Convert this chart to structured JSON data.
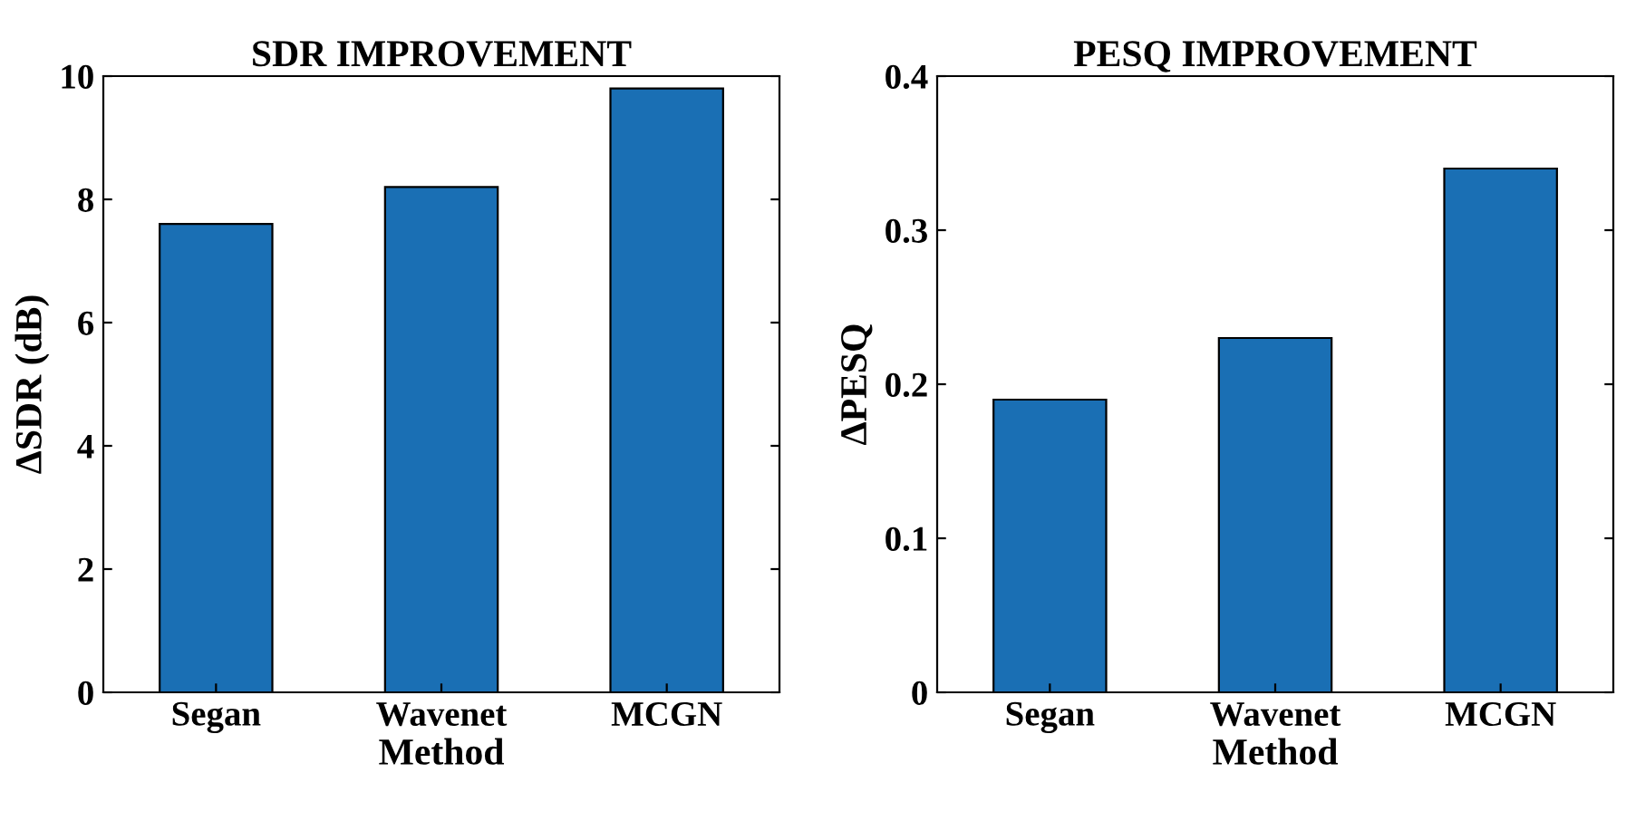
{
  "chart_data": [
    {
      "type": "bar",
      "title": "SDR IMPROVEMENT",
      "xlabel": "Method",
      "ylabel": "ΔSDR (dB)",
      "categories": [
        "Segan",
        "Wavenet",
        "MCGN"
      ],
      "series": [
        {
          "color": "#1a6fb4",
          "values": [
            7.6,
            8.2,
            9.8
          ]
        }
      ],
      "ylim": [
        0,
        10
      ],
      "yticks": [
        0,
        2,
        4,
        6,
        8,
        10
      ],
      "grid": false,
      "legend": false
    },
    {
      "type": "bar",
      "title": "PESQ IMPROVEMENT",
      "xlabel": "Method",
      "ylabel": "ΔPESQ",
      "categories": [
        "Segan",
        "Wavenet",
        "MCGN"
      ],
      "series": [
        {
          "color": "#1a6fb4",
          "values": [
            0.19,
            0.23,
            0.34
          ]
        }
      ],
      "ylim": [
        0,
        0.4
      ],
      "yticks": [
        0,
        0.1,
        0.2,
        0.3,
        0.4
      ],
      "grid": false,
      "legend": false
    }
  ]
}
